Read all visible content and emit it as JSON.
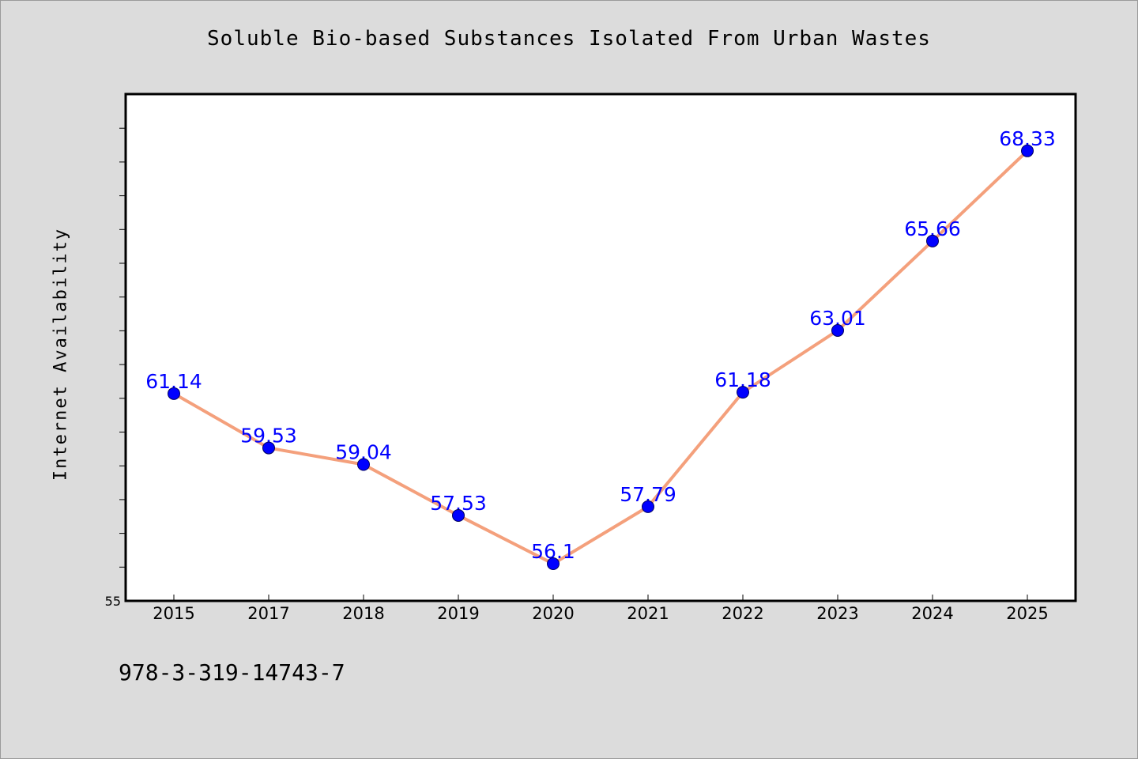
{
  "page": {
    "footer_text": "978-3-319-14743-7"
  },
  "chart_data": {
    "type": "line",
    "title": "Soluble Bio-based Substances Isolated From Urban Wastes",
    "xlabel": "",
    "ylabel": "Internet Availability",
    "categories": [
      "2015",
      "2017",
      "2018",
      "2019",
      "2020",
      "2021",
      "2022",
      "2023",
      "2024",
      "2025"
    ],
    "series": [
      {
        "values": [
          61.14,
          59.53,
          59.04,
          57.53,
          56.1,
          57.79,
          61.18,
          63.01,
          65.66,
          68.33
        ],
        "labels": [
          "61.14",
          "59.53",
          "59.04",
          "57.53",
          "56.1",
          "57.79",
          "61.18",
          "63.01",
          "65.66",
          "68.33"
        ]
      }
    ],
    "ylim": [
      55,
      70
    ],
    "y_tick_labels": [
      "55"
    ],
    "grid": false,
    "legend": "none",
    "colors": {
      "line": "#f4a07c",
      "marker": "#0000ff",
      "data_label": "#0000ff",
      "plot_background": "#ffffff",
      "page_background": "#dcdcdc"
    }
  }
}
